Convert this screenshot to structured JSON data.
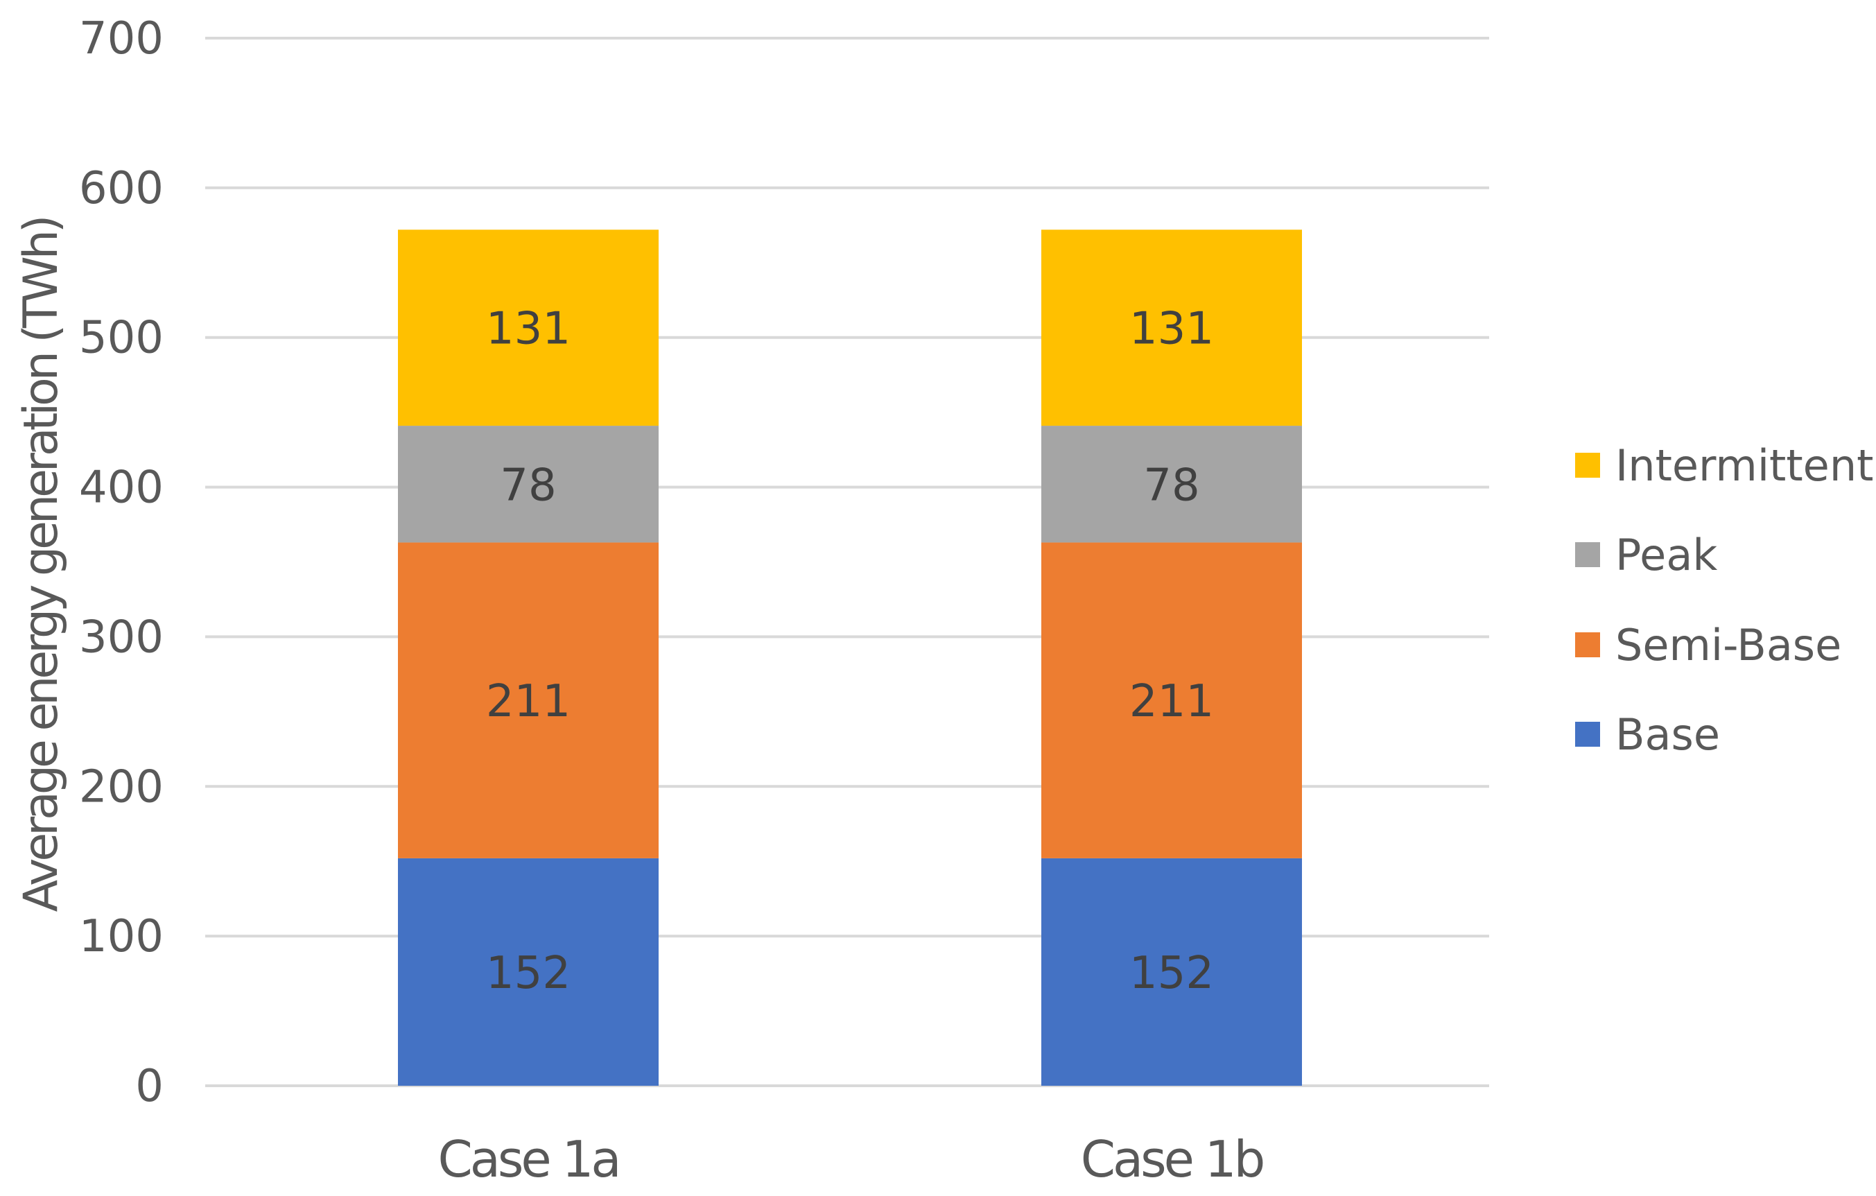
{
  "chart_data": {
    "type": "bar",
    "stacked": true,
    "categories": [
      "Case 1a",
      "Case 1b"
    ],
    "series": [
      {
        "name": "Base",
        "color": "#4472C4",
        "values": [
          152,
          152
        ]
      },
      {
        "name": "Semi-Base",
        "color": "#ED7D31",
        "values": [
          211,
          211
        ]
      },
      {
        "name": "Peak",
        "color": "#A5A5A5",
        "values": [
          78,
          78
        ]
      },
      {
        "name": "Intermittent",
        "color": "#FFC000",
        "values": [
          131,
          131
        ]
      }
    ],
    "title": "",
    "xlabel": "",
    "ylabel": "Average energy generation (TWh)",
    "ylim": [
      0,
      700
    ],
    "yticks": [
      0,
      100,
      200,
      300,
      400,
      500,
      600,
      700
    ],
    "grid": true,
    "legend_position": "right",
    "legend_order": [
      "Intermittent",
      "Peak",
      "Semi-Base",
      "Base"
    ],
    "data_labels": true
  },
  "colors": {
    "gridline": "#D9D9D9",
    "text": "#595959",
    "data_label": "#404040"
  }
}
